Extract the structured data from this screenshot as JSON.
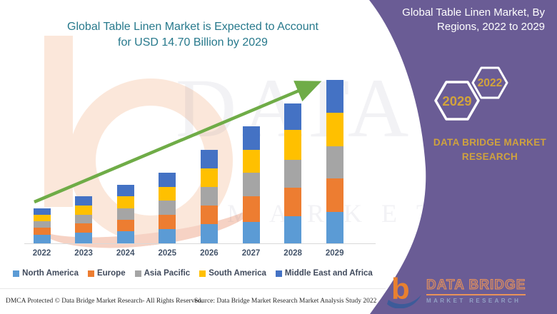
{
  "title": {
    "line1": "Global Table Linen Market is Expected to Account",
    "line2": "for USD 14.70 Billion by 2029"
  },
  "side_panel": {
    "heading_line1": "Global Table Linen Market, By",
    "heading_line2": "Regions, 2022 to 2029",
    "hexagons": [
      {
        "label": "2029"
      },
      {
        "label": "2022"
      }
    ],
    "brand_line1": "DATA BRIDGE MARKET",
    "brand_line2": "RESEARCH",
    "colors": {
      "panel": "#6a5c95",
      "accent_gold": "#d2a33c",
      "hexagon_stroke": "#ffffff"
    }
  },
  "logo": {
    "glyph": "b",
    "name_text": "DATA BRIDGE",
    "subtext": "MARKET RESEARCH"
  },
  "watermark": {
    "line1": "DATA BRIDGE",
    "line2": "MARKET RESEARCH"
  },
  "footer": {
    "dmca": "DMCA Protected © Data Bridge Market Research- All Rights Reserved.",
    "source": "Source: Data Bridge Market Research Market Analysis Study 2022"
  },
  "chart_data": {
    "type": "bar",
    "stacked": true,
    "title": "Global Table Linen Market is Expected to Account for USD 14.70 Billion by 2029",
    "unit": "USD Billion",
    "highlight_value": "USD 14.70 Billion by 2029",
    "categories": [
      "2022",
      "2023",
      "2024",
      "2025",
      "2026",
      "2027",
      "2028",
      "2029"
    ],
    "series": [
      {
        "name": "North America",
        "color": "#5b9bd5",
        "values": [
          0.79,
          0.95,
          1.09,
          1.31,
          1.72,
          1.9,
          2.47,
          2.81
        ]
      },
      {
        "name": "Europe",
        "color": "#ed7d31",
        "values": [
          0.6,
          0.82,
          1.04,
          1.26,
          1.67,
          2.35,
          2.57,
          3.02
        ]
      },
      {
        "name": "Asia Pacific",
        "color": "#a5a5a5",
        "values": [
          0.58,
          0.83,
          1.04,
          1.26,
          1.67,
          2.08,
          2.49,
          2.87
        ]
      },
      {
        "name": "South America",
        "color": "#ffc000",
        "values": [
          0.6,
          0.83,
          1.04,
          1.26,
          1.67,
          2.1,
          2.71,
          3.03
        ]
      },
      {
        "name": "Middle East and Africa",
        "color": "#4472c4",
        "values": [
          0.58,
          0.82,
          1.04,
          1.26,
          1.67,
          2.12,
          2.36,
          2.97
        ]
      }
    ],
    "totals": [
      3.15,
      4.25,
      5.25,
      6.35,
      8.4,
      10.55,
      12.6,
      14.7
    ],
    "value_axis_visible": false,
    "grid": false,
    "legend_position": "bottom",
    "trend_arrow": true,
    "trend_color": "#6fac47"
  }
}
